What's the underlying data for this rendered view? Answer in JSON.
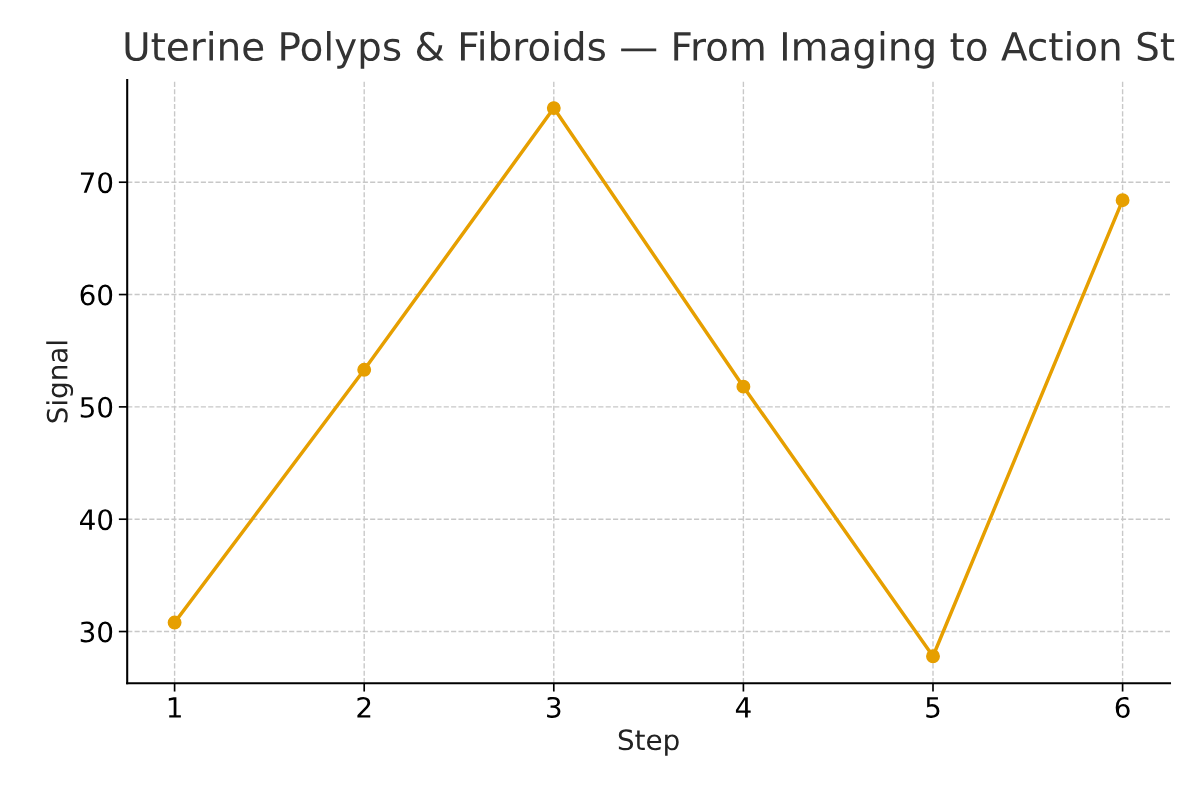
{
  "chart_data": {
    "type": "line",
    "title": "Uterine Polyps & Fibroids — From Imaging to Action St",
    "xlabel": "Step",
    "ylabel": "Signal",
    "x": [
      1,
      2,
      3,
      4,
      5,
      6
    ],
    "series": [
      {
        "color": "#e69f00",
        "values": [
          30.8,
          53.3,
          76.6,
          51.8,
          27.8,
          68.4
        ]
      }
    ],
    "xlim": [
      0.75,
      6.25
    ],
    "xticks": [
      1,
      2,
      3,
      4,
      5,
      6
    ],
    "ylim": [
      25.4,
      79.1
    ],
    "yticks": [
      30,
      40,
      50,
      60,
      70
    ],
    "grid": true,
    "marker": "circle",
    "line_style": "solid"
  }
}
